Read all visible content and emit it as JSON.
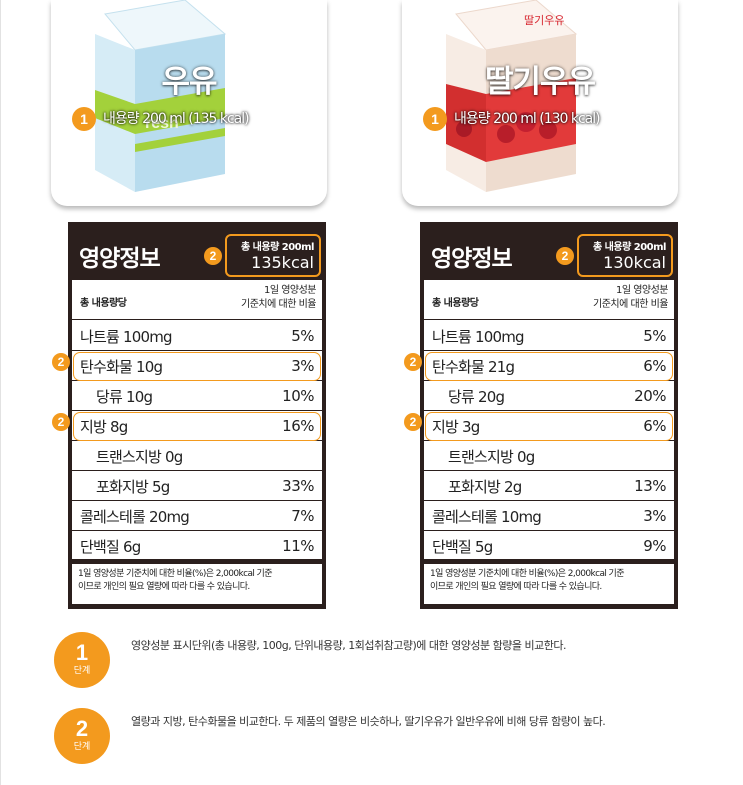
{
  "products": [
    {
      "name": "우유",
      "badge": "1",
      "content": "내용량 200 ml (135 kcal)",
      "carton_colors": {
        "panel": "#d6ecf6",
        "side": "#b8dcee",
        "stripe": "#a3d13b",
        "top": "#eef7fb"
      }
    },
    {
      "name": "딸기우유",
      "badge": "1",
      "content": "내용량 200 ml (130 kcal)",
      "carton_label": "딸기우유",
      "carton_colors": {
        "panel": "#f7ece4",
        "side": "#eedccf",
        "stripe": "#e23a3a",
        "top": "#fbf3ee"
      }
    }
  ],
  "panels": [
    {
      "title": "영양정보",
      "badge": "2",
      "total_label": "총 내용량 200ml",
      "total_kcal": "135kcal",
      "header_left": "총 내용량당",
      "header_right_1": "1일 영양성분",
      "header_right_2": "기준치에 대한 비율",
      "rows": [
        {
          "label": "나트륨 100mg",
          "pct": "5%",
          "indent": false,
          "highlight": false
        },
        {
          "label": "탄수화물 10g",
          "pct": "3%",
          "indent": false,
          "highlight": true,
          "badge": "2"
        },
        {
          "label": "당류 10g",
          "pct": "10%",
          "indent": true,
          "highlight": false
        },
        {
          "label": "지방 8g",
          "pct": "16%",
          "indent": false,
          "highlight": true,
          "badge": "2"
        },
        {
          "label": "트랜스지방 0g",
          "pct": "",
          "indent": true,
          "highlight": false
        },
        {
          "label": "포화지방 5g",
          "pct": "33%",
          "indent": true,
          "highlight": false
        },
        {
          "label": "콜레스테롤 20mg",
          "pct": "7%",
          "indent": false,
          "highlight": false
        },
        {
          "label": "단백질 6g",
          "pct": "11%",
          "indent": false,
          "highlight": false
        }
      ],
      "footnote_1": "1일 영양성분 기준치에 대한 비율(%)은 2,000kcal 기준",
      "footnote_2": "이므로 개인의 필요 열량에 따라 다를 수 있습니다."
    },
    {
      "title": "영양정보",
      "badge": "2",
      "total_label": "총 내용량 200ml",
      "total_kcal": "130kcal",
      "header_left": "총 내용량당",
      "header_right_1": "1일 영양성분",
      "header_right_2": "기준치에 대한 비율",
      "rows": [
        {
          "label": "나트륨 100mg",
          "pct": "5%",
          "indent": false,
          "highlight": false
        },
        {
          "label": "탄수화물 21g",
          "pct": "6%",
          "indent": false,
          "highlight": true,
          "badge": "2"
        },
        {
          "label": "당류 20g",
          "pct": "20%",
          "indent": true,
          "highlight": false
        },
        {
          "label": "지방 3g",
          "pct": "6%",
          "indent": false,
          "highlight": true,
          "badge": "2"
        },
        {
          "label": "트랜스지방 0g",
          "pct": "",
          "indent": true,
          "highlight": false
        },
        {
          "label": "포화지방 2g",
          "pct": "13%",
          "indent": true,
          "highlight": false
        },
        {
          "label": "콜레스테롤 10mg",
          "pct": "3%",
          "indent": false,
          "highlight": false
        },
        {
          "label": "단백질 5g",
          "pct": "9%",
          "indent": false,
          "highlight": false
        }
      ],
      "footnote_1": "1일 영양성분 기준치에 대한 비율(%)은 2,000kcal 기준",
      "footnote_2": "이므로 개인의 필요 열량에 따라 다를 수 있습니다."
    }
  ],
  "steps": [
    {
      "num": "1",
      "unit": "단계",
      "text": "영양성분 표시단위(총 내용량, 100g, 단위내용량, 1회섭취참고량)에 대한 영양성분 함량을 비교한다."
    },
    {
      "num": "2",
      "unit": "단계",
      "text": "열량과 지방, 탄수화물을 비교한다. 두 제품의 열량은 비슷하나, 딸기우유가 일반우유에 비해 당류 함량이 높다."
    }
  ],
  "accent_color": "#f39a1e",
  "panel_color": "#2b1f1d"
}
